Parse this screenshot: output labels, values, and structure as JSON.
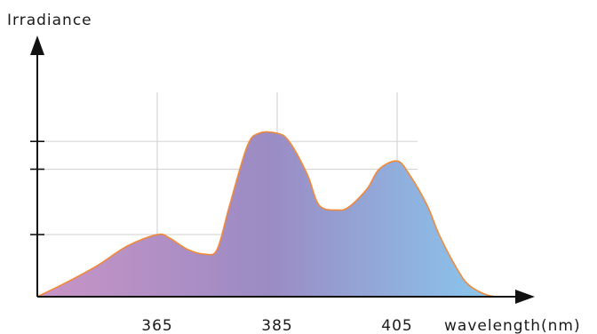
{
  "chart_data": {
    "type": "area",
    "ylabel": "Irradiance",
    "xlabel": "wavelength(nm)",
    "x_ticks": [
      365,
      385,
      405
    ],
    "x_tick_labels": [
      "365",
      "385",
      "405"
    ],
    "xlim": [
      345,
      425
    ],
    "ylim": [
      0,
      1.05
    ],
    "grid": true,
    "y_tick_values": [
      0.38,
      0.78,
      0.95
    ],
    "x": [
      345,
      350,
      355,
      360,
      365,
      367,
      370,
      373,
      375,
      377,
      380,
      382,
      385,
      387,
      390,
      392,
      395,
      397,
      400,
      402,
      405,
      407,
      410,
      412,
      415,
      417,
      420,
      422
    ],
    "values": [
      0.0,
      0.09,
      0.19,
      0.31,
      0.38,
      0.36,
      0.29,
      0.26,
      0.29,
      0.55,
      0.92,
      1.0,
      1.0,
      0.95,
      0.75,
      0.56,
      0.53,
      0.55,
      0.66,
      0.78,
      0.83,
      0.75,
      0.56,
      0.38,
      0.17,
      0.07,
      0.01,
      0.0
    ],
    "fill_gradient": [
      "#c994c6",
      "#9b8bc4",
      "#88c9ef"
    ],
    "line_color": "#f08a3a"
  }
}
